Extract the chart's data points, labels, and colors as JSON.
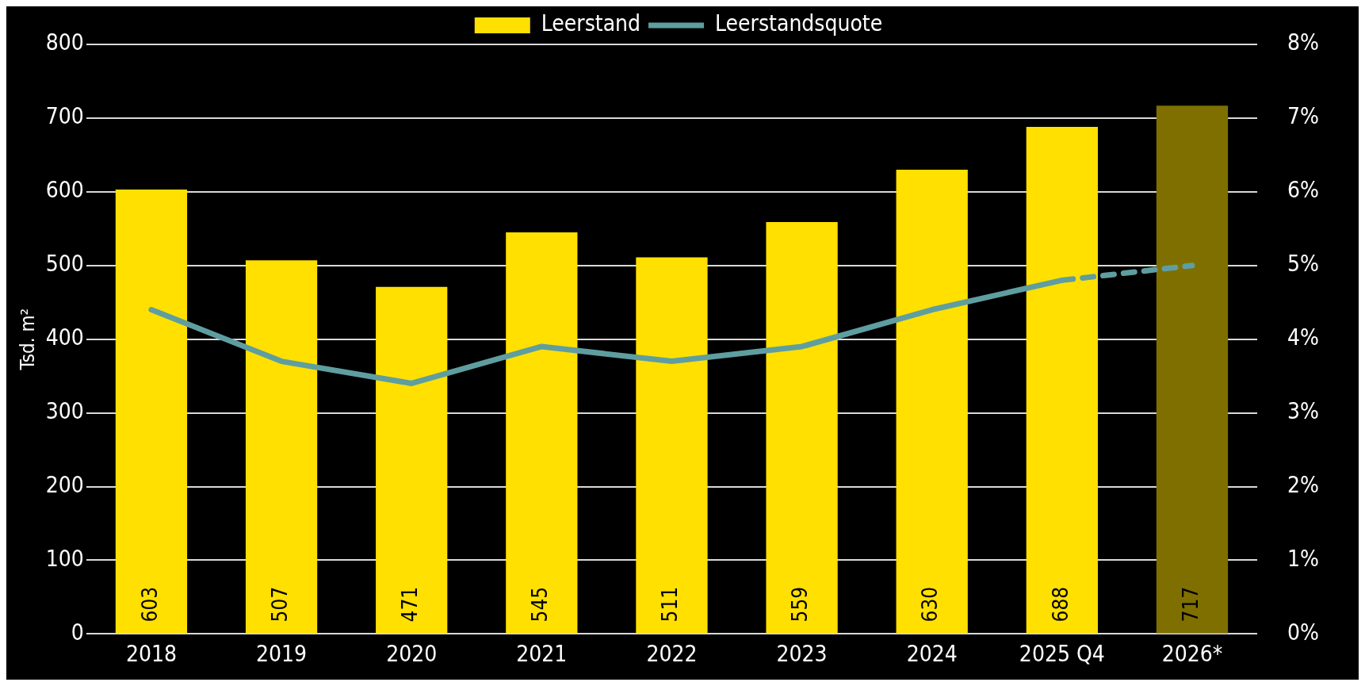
{
  "chart_data": {
    "type": "bar",
    "ylabel": "Tsd. m²",
    "categories": [
      "2018",
      "2019",
      "2020",
      "2021",
      "2022",
      "2023",
      "2024",
      "2025 Q4",
      "2026*"
    ],
    "series": [
      {
        "name": "Leerstand",
        "color": "#ffe000",
        "colors": [
          "#ffe000",
          "#ffe000",
          "#ffe000",
          "#ffe000",
          "#ffe000",
          "#ffe000",
          "#ffe000",
          "#ffe000",
          "#7f6f00"
        ],
        "values": [
          603,
          507,
          471,
          545,
          511,
          559,
          630,
          688,
          717
        ],
        "value_labels": [
          "603",
          "507",
          "471",
          "545",
          "511",
          "559",
          "630",
          "688",
          "717"
        ]
      },
      {
        "name": "Leerstandsquote",
        "type": "line",
        "axis": "y2",
        "color": "#5f9ea0",
        "line_style": "solid",
        "values": [
          4.4,
          3.7,
          3.4,
          3.9,
          3.7,
          3.9,
          4.4,
          4.8,
          null
        ]
      },
      {
        "type": "line",
        "axis": "y2",
        "color": "#5f9ea0",
        "line_style": "dashed",
        "values": [
          null,
          null,
          null,
          null,
          null,
          null,
          null,
          4.8,
          5.0
        ]
      }
    ],
    "ylim": [
      0,
      800
    ],
    "yticks": [
      0,
      100,
      200,
      300,
      400,
      500,
      600,
      700,
      800
    ],
    "y2lim": [
      0,
      8
    ],
    "y2ticks": [
      {
        "value": 0,
        "label": "0%"
      },
      {
        "value": 1,
        "label": "1%"
      },
      {
        "value": 2,
        "label": "2%"
      },
      {
        "value": 3,
        "label": "3%"
      },
      {
        "value": 4,
        "label": "4%"
      },
      {
        "value": 5,
        "label": "5%"
      },
      {
        "value": 6,
        "label": "6%"
      },
      {
        "value": 7,
        "label": "7%"
      },
      {
        "value": 8,
        "label": "8%"
      }
    ],
    "grid": "y",
    "legend": "top",
    "marker": "none"
  }
}
